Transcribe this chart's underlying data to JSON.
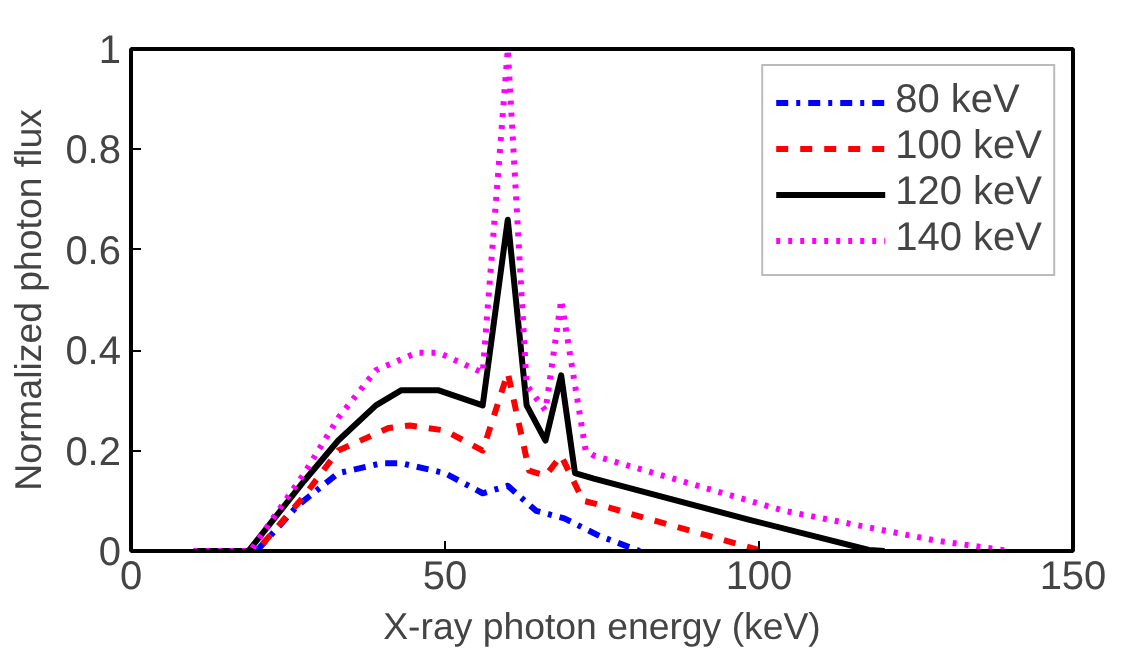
{
  "chart_data": {
    "type": "line",
    "xlabel": "X-ray photon energy (keV)",
    "ylabel": "Normalized photon flux",
    "xlim": [
      0,
      150
    ],
    "xticks": [
      0,
      50,
      100,
      150
    ],
    "ylim": [
      0,
      1
    ],
    "yticks": [
      0,
      0.2,
      0.4,
      0.6,
      0.8,
      1
    ],
    "grid": false,
    "legend": "top right",
    "marker": "none",
    "series": [
      {
        "name": "80 keV",
        "color": "#0000ff",
        "line_style": "dashdot",
        "x": [
          10,
          20,
          26.5,
          33,
          40,
          43,
          50,
          56,
          60,
          64.5,
          69,
          74.6,
          81
        ],
        "values": [
          0,
          0,
          0.09,
          0.155,
          0.175,
          0.175,
          0.155,
          0.115,
          0.13,
          0.08,
          0.065,
          0.03,
          0
        ]
      },
      {
        "name": "100 keV",
        "color": "#ff0000",
        "line_style": "dashed",
        "x": [
          10,
          20,
          27.6,
          33,
          41,
          44.4,
          50,
          56,
          60,
          63.4,
          66,
          68.5,
          72,
          73.7,
          87.2,
          100.6
        ],
        "values": [
          0,
          0,
          0.11,
          0.2,
          0.245,
          0.25,
          0.24,
          0.2,
          0.355,
          0.16,
          0.15,
          0.19,
          0.1,
          0.095,
          0.047,
          0
        ]
      },
      {
        "name": "120 keV",
        "color": "#000000",
        "line_style": "solid",
        "x": [
          10,
          18.7,
          27.6,
          33,
          39,
          43,
          49,
          56,
          60,
          63,
          66,
          68.5,
          70.7,
          73.7,
          98.5,
          117.5,
          120
        ],
        "values": [
          0,
          0,
          0.14,
          0.22,
          0.29,
          0.32,
          0.32,
          0.29,
          0.66,
          0.29,
          0.22,
          0.35,
          0.155,
          0.144,
          0.062,
          0.002,
          0
        ]
      },
      {
        "name": "140 keV",
        "color": "#ff00ff",
        "line_style": "dotted",
        "x": [
          10,
          19,
          27.6,
          33,
          39,
          45.5,
          49,
          56,
          60,
          63,
          66,
          68.5,
          72.4,
          73.7,
          104,
          128.5,
          140
        ],
        "values": [
          0,
          0,
          0.155,
          0.265,
          0.36,
          0.395,
          0.395,
          0.355,
          1.0,
          0.33,
          0.28,
          0.5,
          0.2,
          0.19,
          0.08,
          0.02,
          0
        ]
      }
    ]
  }
}
